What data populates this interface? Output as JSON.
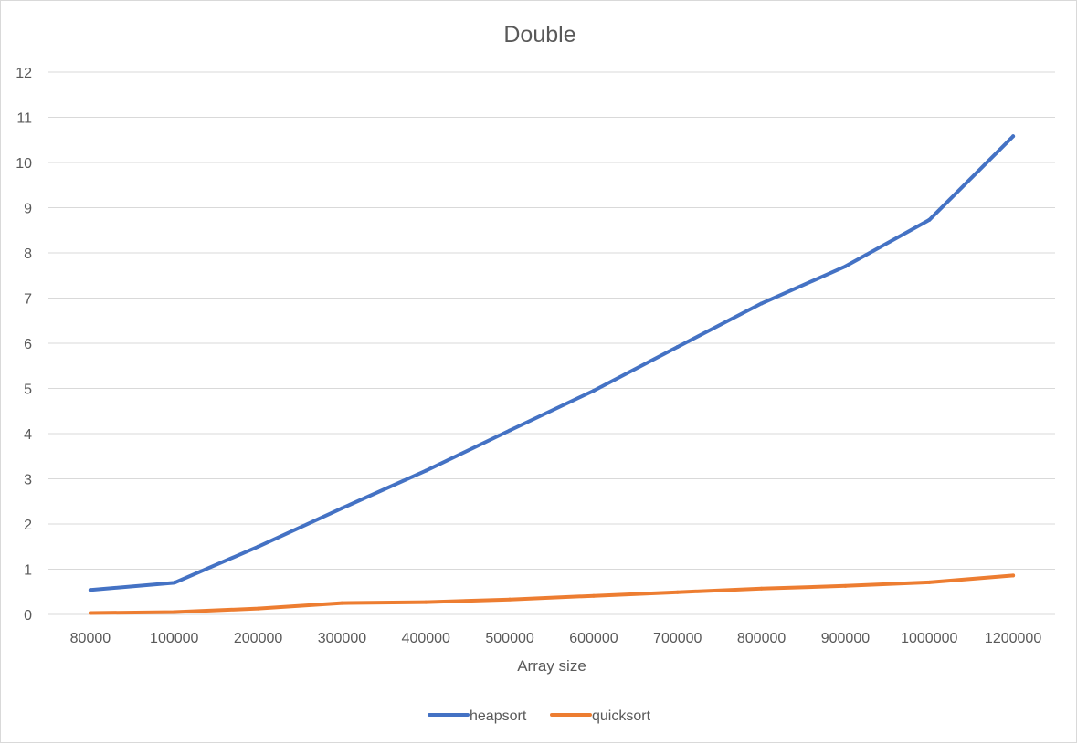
{
  "chart_data": {
    "type": "line",
    "title": "Double",
    "xlabel": "Array size",
    "ylabel": "",
    "ylim": [
      0,
      12
    ],
    "yticks": [
      "0",
      "1",
      "2",
      "3",
      "4",
      "5",
      "6",
      "7",
      "8",
      "9",
      "10",
      "11",
      "12"
    ],
    "grid": true,
    "legend_position": "bottom",
    "categories": [
      "80000",
      "100000",
      "200000",
      "300000",
      "400000",
      "500000",
      "600000",
      "700000",
      "800000",
      "900000",
      "1000000",
      "1200000"
    ],
    "series": [
      {
        "name": "heapsort",
        "color": "#4472c4",
        "values": [
          0.54,
          0.7,
          1.5,
          2.35,
          3.18,
          4.07,
          4.95,
          5.92,
          6.88,
          7.7,
          8.73,
          10.58
        ]
      },
      {
        "name": "quicksort",
        "color": "#ed7d31",
        "values": [
          0.03,
          0.05,
          0.13,
          0.25,
          0.27,
          0.33,
          0.41,
          0.49,
          0.57,
          0.63,
          0.71,
          0.86
        ]
      }
    ]
  }
}
